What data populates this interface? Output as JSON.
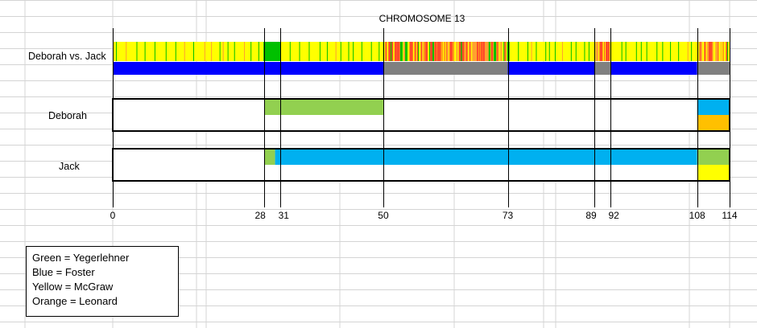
{
  "colors": {
    "green": "#92d050",
    "blue": "#00b0f0",
    "yellow": "#ffff00",
    "orange": "#ffc000",
    "dark_blue": "#0000ff",
    "gray": "#808080",
    "bright_green": "#00c000",
    "red": "#ff4a2a",
    "light_orange": "#ffa030",
    "grid": "#d4d4d4"
  },
  "legend": [
    "Green = Yegerlehner",
    "Blue = Foster",
    "Yellow = McGraw",
    "Orange = Leonard"
  ],
  "chart_data": {
    "type": "bar",
    "title": "CHROMOSOME 13",
    "x_range": [
      0,
      114
    ],
    "ticks": [
      0,
      28,
      31,
      50,
      73,
      89,
      92,
      108,
      114
    ],
    "tick_labels": [
      "0",
      "28",
      "31",
      "50",
      "73",
      "89",
      "92",
      "108",
      "114"
    ],
    "comparison": {
      "label": "Deborah vs. Jack",
      "match_segments": [
        {
          "start": 0,
          "end": 50,
          "type": "match"
        },
        {
          "start": 50,
          "end": 73,
          "type": "no-match"
        },
        {
          "start": 73,
          "end": 89,
          "type": "match"
        },
        {
          "start": 89,
          "end": 92,
          "type": "no-match"
        },
        {
          "start": 92,
          "end": 108,
          "type": "match"
        },
        {
          "start": 108,
          "end": 114,
          "type": "no-match"
        }
      ],
      "snp_density": [
        {
          "start": 0,
          "end": 28,
          "pattern": "mostly-yellow"
        },
        {
          "start": 28,
          "end": 31,
          "pattern": "solid-green"
        },
        {
          "start": 31,
          "end": 50,
          "pattern": "mostly-yellow"
        },
        {
          "start": 50,
          "end": 73,
          "pattern": "mixed-red"
        },
        {
          "start": 73,
          "end": 89,
          "pattern": "mostly-yellow"
        },
        {
          "start": 89,
          "end": 92,
          "pattern": "mixed-red"
        },
        {
          "start": 92,
          "end": 108,
          "pattern": "mostly-yellow"
        },
        {
          "start": 108,
          "end": 114,
          "pattern": "mixed-red"
        }
      ]
    },
    "people": [
      {
        "name": "Deborah",
        "top": [
          {
            "start": 28,
            "end": 50,
            "color": "green"
          },
          {
            "start": 108,
            "end": 114,
            "color": "blue"
          }
        ],
        "bottom": [
          {
            "start": 108,
            "end": 114,
            "color": "orange"
          }
        ]
      },
      {
        "name": "Jack",
        "top": [
          {
            "start": 28,
            "end": 30,
            "color": "green"
          },
          {
            "start": 30,
            "end": 108,
            "color": "blue"
          },
          {
            "start": 108,
            "end": 114,
            "color": "green"
          }
        ],
        "bottom": [
          {
            "start": 108,
            "end": 114,
            "color": "yellow"
          }
        ]
      }
    ]
  }
}
